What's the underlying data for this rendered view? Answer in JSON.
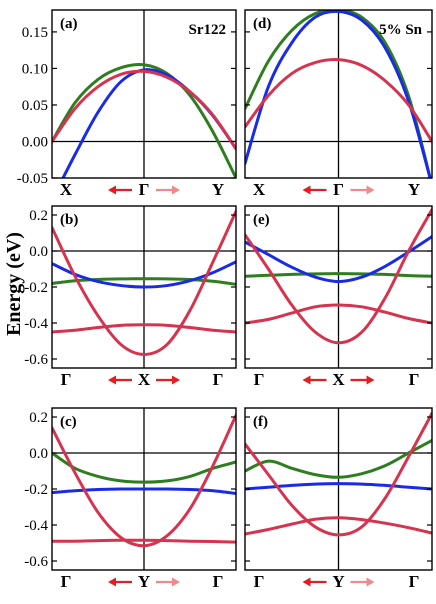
{
  "colors": {
    "green": "#2E7D1F",
    "blue": "#1A2BE8",
    "red": "#D6334F",
    "arrow_dark": "#E01F1F",
    "arrow_light": "#F08A8A"
  },
  "ylabel": "Energy (eV)",
  "chart_data": [
    {
      "type": "line",
      "label": "(a)",
      "title": "Sr122",
      "x_ticks": [
        "X",
        "Γ",
        "Y"
      ],
      "ylim": [
        -0.05,
        0.18
      ],
      "y_ticks": [
        -0.05,
        0.0,
        0.05,
        0.1,
        0.15
      ],
      "y_tick_labels": [
        "-0.05",
        "0.00",
        "0.05",
        "0.10",
        "0.15"
      ],
      "zero_line": 0,
      "arrows": "dark-light",
      "x": [
        -1,
        -0.75,
        -0.5,
        -0.25,
        0,
        0.25,
        0.5,
        0.75,
        1
      ],
      "series": [
        {
          "color": "green",
          "values": [
            0.0,
            0.053,
            0.085,
            0.101,
            0.105,
            0.093,
            0.063,
            0.013,
            -0.05
          ]
        },
        {
          "color": "blue",
          "values": [
            -0.08,
            -0.018,
            0.04,
            0.082,
            0.098,
            0.091,
            0.068,
            0.035,
            -0.01
          ]
        },
        {
          "color": "red",
          "values": [
            0.0,
            0.045,
            0.075,
            0.092,
            0.096,
            0.088,
            0.068,
            0.036,
            -0.01
          ]
        }
      ]
    },
    {
      "type": "line",
      "label": "(d)",
      "title": "5% Sn",
      "x_ticks": [
        "X",
        "Γ",
        "Y"
      ],
      "ylim": [
        -0.05,
        0.18
      ],
      "y_ticks": [
        -0.05,
        0.0,
        0.05,
        0.1,
        0.15
      ],
      "y_tick_labels": [],
      "zero_line": 0,
      "arrows": "dark-light",
      "x": [
        -1,
        -0.75,
        -0.5,
        -0.25,
        0,
        0.25,
        0.5,
        0.75,
        1
      ],
      "series": [
        {
          "color": "green",
          "values": [
            0.045,
            0.11,
            0.152,
            0.175,
            0.18,
            0.17,
            0.135,
            0.062,
            -0.06
          ]
        },
        {
          "color": "blue",
          "values": [
            -0.03,
            0.075,
            0.135,
            0.17,
            0.178,
            0.166,
            0.128,
            0.055,
            -0.06
          ]
        },
        {
          "color": "red",
          "values": [
            0.02,
            0.063,
            0.093,
            0.108,
            0.112,
            0.104,
            0.083,
            0.05,
            0.0
          ]
        }
      ]
    },
    {
      "type": "line",
      "label": "(b)",
      "title": "",
      "x_ticks": [
        "Γ",
        "X",
        "Γ"
      ],
      "ylim": [
        -0.65,
        0.25
      ],
      "y_ticks": [
        -0.6,
        -0.4,
        -0.2,
        0.0,
        0.2
      ],
      "y_tick_labels": [
        "-0.6",
        "-0.4",
        "-0.2",
        "0.0",
        "0.2"
      ],
      "zero_line": 0,
      "arrows": "dark-dark",
      "x": [
        -1,
        -0.75,
        -0.5,
        -0.25,
        0,
        0.25,
        0.5,
        0.75,
        1
      ],
      "series": [
        {
          "color": "green",
          "values": [
            -0.18,
            -0.165,
            -0.158,
            -0.155,
            -0.154,
            -0.155,
            -0.158,
            -0.168,
            -0.185
          ]
        },
        {
          "color": "blue",
          "values": [
            -0.07,
            -0.13,
            -0.17,
            -0.192,
            -0.2,
            -0.192,
            -0.165,
            -0.12,
            -0.06
          ]
        },
        {
          "color": "red",
          "values": [
            0.13,
            -0.14,
            -0.36,
            -0.52,
            -0.575,
            -0.52,
            -0.33,
            -0.06,
            0.22
          ]
        },
        {
          "color": "red",
          "values": [
            -0.45,
            -0.44,
            -0.425,
            -0.413,
            -0.41,
            -0.413,
            -0.425,
            -0.44,
            -0.45
          ]
        }
      ]
    },
    {
      "type": "line",
      "label": "(e)",
      "title": "",
      "x_ticks": [
        "Γ",
        "X",
        "Γ"
      ],
      "ylim": [
        -0.65,
        0.25
      ],
      "y_ticks": [
        -0.6,
        -0.4,
        -0.2,
        0.0,
        0.2
      ],
      "y_tick_labels": [],
      "zero_line": 0,
      "arrows": "dark-dark",
      "x": [
        -1,
        -0.75,
        -0.5,
        -0.25,
        0,
        0.25,
        0.5,
        0.75,
        1
      ],
      "series": [
        {
          "color": "green",
          "values": [
            -0.14,
            -0.135,
            -0.13,
            -0.127,
            -0.126,
            -0.127,
            -0.13,
            -0.137,
            -0.14
          ]
        },
        {
          "color": "blue",
          "values": [
            0.05,
            -0.02,
            -0.09,
            -0.145,
            -0.17,
            -0.145,
            -0.085,
            -0.005,
            0.08
          ]
        },
        {
          "color": "red",
          "values": [
            0.09,
            -0.1,
            -0.3,
            -0.45,
            -0.51,
            -0.45,
            -0.26,
            0.0,
            0.23
          ]
        },
        {
          "color": "red",
          "values": [
            -0.4,
            -0.38,
            -0.345,
            -0.31,
            -0.3,
            -0.31,
            -0.34,
            -0.375,
            -0.4
          ]
        }
      ]
    },
    {
      "type": "line",
      "label": "(c)",
      "title": "",
      "x_ticks": [
        "Γ",
        "Y",
        "Γ"
      ],
      "ylim": [
        -0.65,
        0.25
      ],
      "y_ticks": [
        -0.6,
        -0.4,
        -0.2,
        0.0,
        0.2
      ],
      "y_tick_labels": [
        "-0.6",
        "-0.4",
        "-0.2",
        "0.0",
        "0.2"
      ],
      "zero_line": 0,
      "arrows": "dark-light",
      "x": [
        -1,
        -0.75,
        -0.5,
        -0.25,
        0,
        0.25,
        0.5,
        0.75,
        1
      ],
      "series": [
        {
          "color": "green",
          "values": [
            0.0,
            -0.085,
            -0.13,
            -0.155,
            -0.162,
            -0.155,
            -0.13,
            -0.085,
            -0.05
          ]
        },
        {
          "color": "blue",
          "values": [
            -0.22,
            -0.21,
            -0.203,
            -0.2,
            -0.2,
            -0.2,
            -0.203,
            -0.21,
            -0.225
          ]
        },
        {
          "color": "red",
          "values": [
            0.14,
            -0.11,
            -0.33,
            -0.47,
            -0.515,
            -0.46,
            -0.31,
            -0.07,
            0.21
          ]
        },
        {
          "color": "red",
          "values": [
            -0.49,
            -0.49,
            -0.487,
            -0.485,
            -0.485,
            -0.487,
            -0.49,
            -0.492,
            -0.495
          ]
        }
      ]
    },
    {
      "type": "line",
      "label": "(f)",
      "title": "",
      "x_ticks": [
        "Γ",
        "Y",
        "Γ"
      ],
      "ylim": [
        -0.65,
        0.25
      ],
      "y_ticks": [
        -0.6,
        -0.4,
        -0.2,
        0.0,
        0.2
      ],
      "y_tick_labels": [],
      "zero_line": 0,
      "arrows": "dark-light",
      "x": [
        -1,
        -0.75,
        -0.5,
        -0.25,
        0,
        0.25,
        0.5,
        0.75,
        1
      ],
      "series": [
        {
          "color": "green",
          "values": [
            -0.1,
            -0.045,
            -0.085,
            -0.12,
            -0.135,
            -0.115,
            -0.07,
            0.0,
            0.07
          ]
        },
        {
          "color": "blue",
          "values": [
            -0.2,
            -0.19,
            -0.18,
            -0.173,
            -0.17,
            -0.173,
            -0.18,
            -0.19,
            -0.2
          ]
        },
        {
          "color": "red",
          "values": [
            0.05,
            -0.12,
            -0.29,
            -0.41,
            -0.455,
            -0.41,
            -0.25,
            -0.02,
            0.22
          ]
        },
        {
          "color": "red",
          "values": [
            -0.45,
            -0.425,
            -0.395,
            -0.368,
            -0.36,
            -0.37,
            -0.39,
            -0.415,
            -0.445
          ]
        }
      ]
    }
  ]
}
